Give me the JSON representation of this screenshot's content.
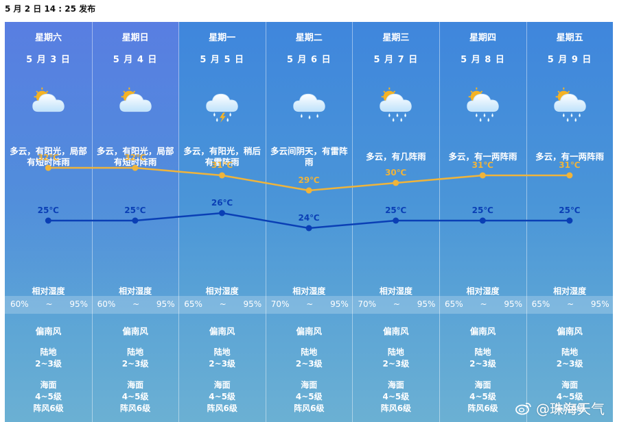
{
  "issued": "5 月 2 日 14 : 25 发布",
  "colors": {
    "high": "#f0b43a",
    "low": "#0a3fb5"
  },
  "humidity_label": "相对湿度",
  "humidity_sep": "~",
  "land_label": "陆地",
  "sea_label": "海面",
  "watermark": "@珠海天气",
  "chart_data": {
    "type": "line",
    "x": [
      "5 月 3 日",
      "5 月 4 日",
      "5 月 5 日",
      "5 月 6 日",
      "5 月 7 日",
      "5 月 8 日",
      "5 月 9 日"
    ],
    "series": [
      {
        "values": [
          32,
          32,
          31,
          29,
          30,
          31,
          31
        ],
        "labels": [
          "32℃",
          "32℃",
          "31℃",
          "29℃",
          "30℃",
          "31℃",
          "31℃"
        ]
      },
      {
        "values": [
          25,
          25,
          26,
          24,
          25,
          25,
          25
        ],
        "labels": [
          "25℃",
          "25℃",
          "26℃",
          "24℃",
          "25℃",
          "25℃",
          "25℃"
        ]
      }
    ]
  },
  "days": [
    {
      "weekday": "星期六",
      "date": "5 月 3 日",
      "icon": "partly-cloudy-icon",
      "desc": "多云，有阳光，局部有短时阵雨",
      "hum_min": "60%",
      "hum_max": "95%",
      "wind_dir": "偏南风",
      "land": "2~3级",
      "sea": "4~5级",
      "gust": "阵风6级"
    },
    {
      "weekday": "星期日",
      "date": "5 月 4 日",
      "icon": "partly-cloudy-icon",
      "desc": "多云，有阳光，局部有短时阵雨",
      "hum_min": "60%",
      "hum_max": "95%",
      "wind_dir": "偏南风",
      "land": "2~3级",
      "sea": "4~5级",
      "gust": "阵风6级"
    },
    {
      "weekday": "星期一",
      "date": "5 月 5 日",
      "icon": "thunderstorm-icon",
      "desc": "多云，有阳光，稍后有雷阵雨",
      "hum_min": "65%",
      "hum_max": "95%",
      "wind_dir": "偏南风",
      "land": "2~3级",
      "sea": "4~5级",
      "gust": "阵风6级"
    },
    {
      "weekday": "星期二",
      "date": "5 月 6 日",
      "icon": "rain-icon",
      "desc": "多云间阴天，有雷阵雨",
      "hum_min": "70%",
      "hum_max": "95%",
      "wind_dir": "偏南风",
      "land": "2~3级",
      "sea": "4~5级",
      "gust": "阵风6级"
    },
    {
      "weekday": "星期三",
      "date": "5 月 7 日",
      "icon": "sun-shower-icon",
      "desc": "多云，有几阵雨",
      "hum_min": "70%",
      "hum_max": "95%",
      "wind_dir": "偏南风",
      "land": "2~3级",
      "sea": "4~5级",
      "gust": "阵风6级"
    },
    {
      "weekday": "星期四",
      "date": "5 月 8 日",
      "icon": "sun-shower-icon",
      "desc": "多云，有一两阵雨",
      "hum_min": "65%",
      "hum_max": "95%",
      "wind_dir": "偏南风",
      "land": "2~3级",
      "sea": "4~5级",
      "gust": "阵风6级"
    },
    {
      "weekday": "星期五",
      "date": "5 月 9 日",
      "icon": "sun-shower-icon",
      "desc": "多云，有一两阵雨",
      "hum_min": "65%",
      "hum_max": "95%",
      "wind_dir": "偏南风",
      "land": "2~3级",
      "sea": "4~5级",
      "gust": "阵风6级"
    }
  ]
}
